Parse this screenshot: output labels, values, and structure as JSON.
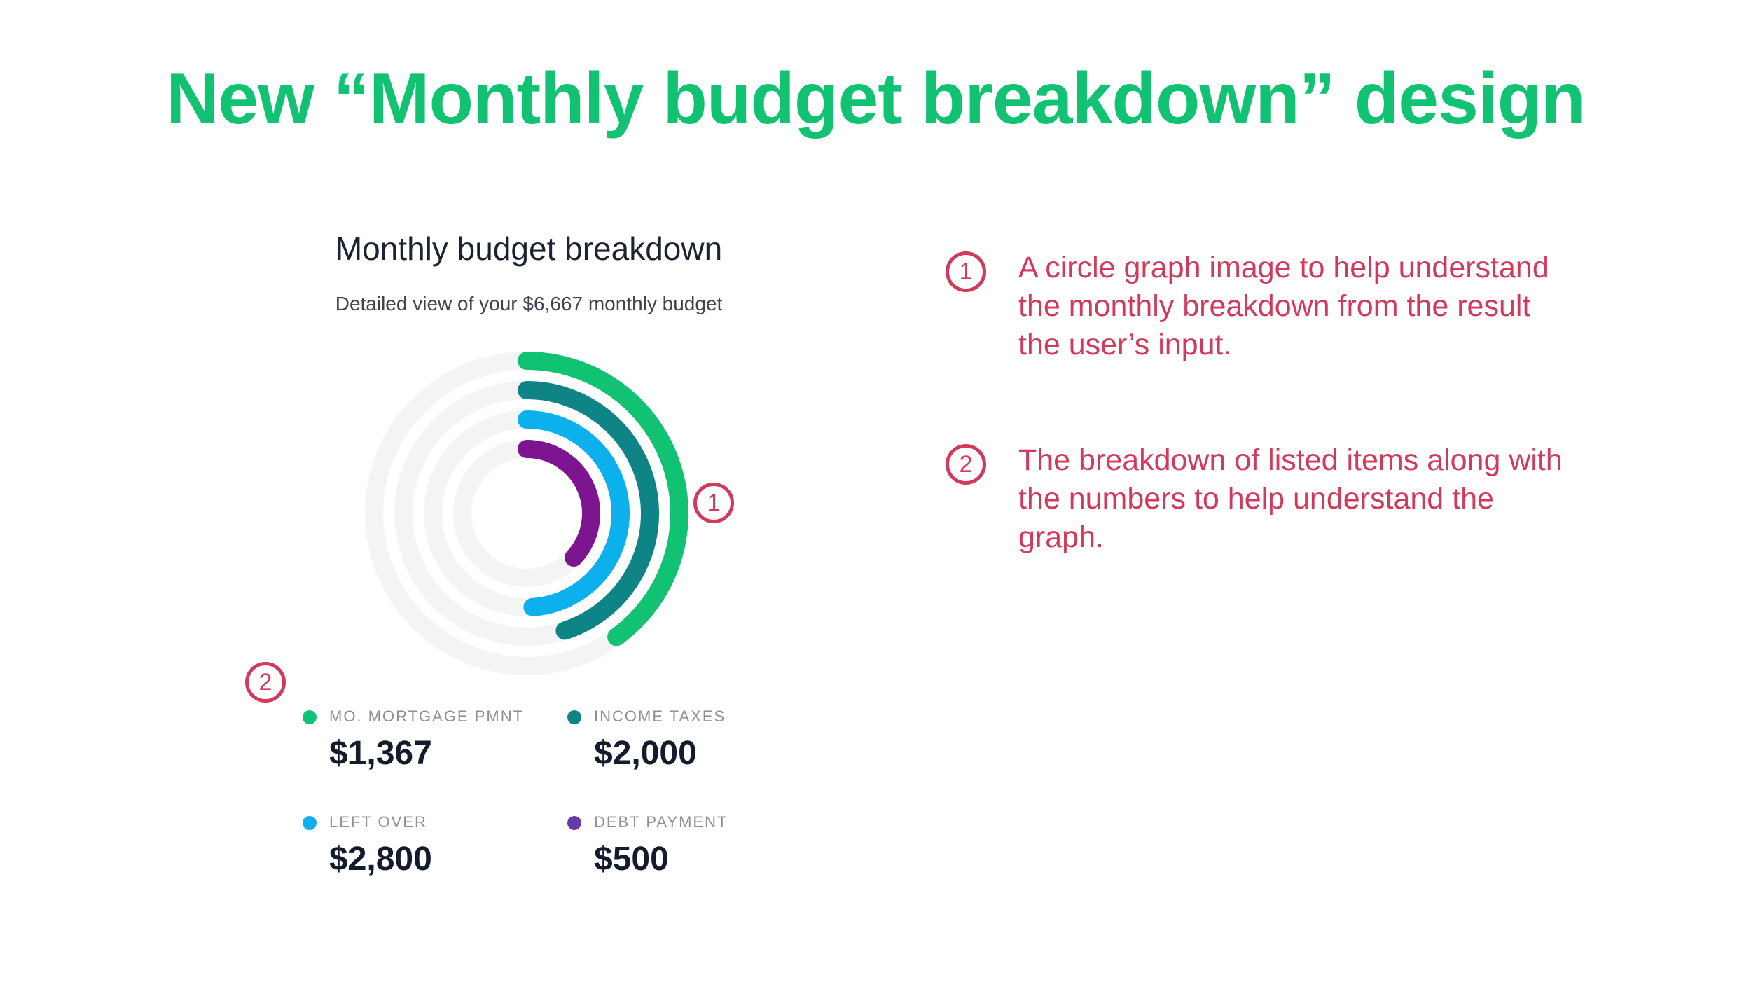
{
  "header": {
    "title": "New “Monthly budget breakdown” design"
  },
  "card": {
    "title": "Monthly budget breakdown",
    "subtitle": "Detailed view of your $6,667 monthly budget"
  },
  "chart_data": {
    "type": "radial-bar",
    "total": 6667,
    "series": [
      {
        "name": "MO. MORTGAGE PMNT",
        "value": 1367,
        "display": "$1,367",
        "color": "#12c273",
        "fraction": 0.4
      },
      {
        "name": "INCOME TAXES",
        "value": 2000,
        "display": "$2,000",
        "color": "#0e8486",
        "fraction": 0.45
      },
      {
        "name": "LEFT OVER",
        "value": 2800,
        "display": "$2,800",
        "color": "#0bb0ec",
        "fraction": 0.49
      },
      {
        "name": "DEBT PAYMENT",
        "value": 500,
        "display": "$500",
        "color": "#7d1590",
        "fraction": 0.37
      }
    ],
    "track_color": "#f4f4f4"
  },
  "callouts": {
    "one": "1",
    "two": "2"
  },
  "notes": [
    {
      "number": "1",
      "text": "A circle graph image to help understand the monthly breakdown from the result the user’s input."
    },
    {
      "number": "2",
      "text": "The breakdown of listed items along with the numbers to help understand the graph."
    }
  ],
  "legend_dot_colors": {
    "debt_payment_dot": "#6a3aa8"
  }
}
